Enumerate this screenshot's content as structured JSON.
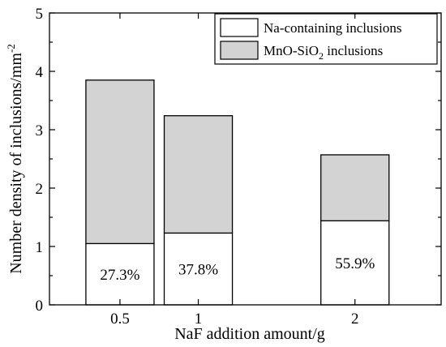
{
  "chart_data": {
    "type": "bar",
    "stacked": true,
    "x": [
      0.5,
      1,
      2
    ],
    "x_ticks": [
      "0.5",
      "1",
      "2"
    ],
    "xlim": [
      0.05,
      2.55
    ],
    "xlabel": "NaF addition amount/g",
    "ylabel": "Number density of inclusions/mm",
    "ylabel_sup": "-2",
    "ylim": [
      0,
      5
    ],
    "y_ticks": [
      "0",
      "1",
      "2",
      "3",
      "4",
      "5"
    ],
    "grid": false,
    "legend": "top-right",
    "series": [
      {
        "name": "Na-containing inclusions",
        "values": [
          1.05,
          1.23,
          1.44
        ],
        "color": "#ffffff"
      },
      {
        "name_main": "MnO-SiO",
        "name_sub": "2",
        "name_tail": " inclusions",
        "values": [
          2.8,
          2.01,
          1.13
        ],
        "color": "#d3d3d3"
      }
    ],
    "annotations": [
      "27.3%",
      "37.8%",
      "55.9%"
    ]
  }
}
